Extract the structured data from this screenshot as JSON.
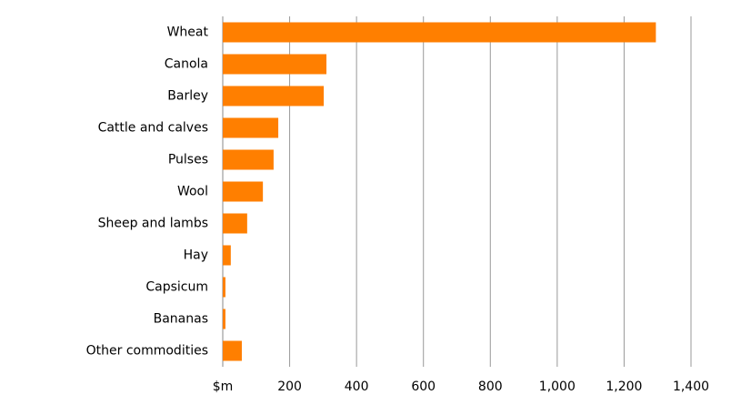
{
  "chart_data": {
    "type": "barh",
    "categories": [
      "Wheat",
      "Canola",
      "Barley",
      "Cattle and calves",
      "Pulses",
      "Wool",
      "Sheep and lambs",
      "Hay",
      "Capsicum",
      "Bananas",
      "Other commodities"
    ],
    "values": [
      1295,
      310,
      302,
      166,
      152,
      120,
      73,
      24,
      8,
      8,
      57
    ],
    "color": "#ff7f00",
    "xlim": [
      0,
      1400
    ],
    "xticks": [
      {
        "value": 0,
        "label": "$m"
      },
      200,
      400,
      600,
      800,
      {
        "value": 1000,
        "label": "1,000"
      },
      {
        "value": 1200,
        "label": "1,200"
      },
      {
        "value": 1400,
        "label": "1,400"
      }
    ],
    "grid": true
  }
}
